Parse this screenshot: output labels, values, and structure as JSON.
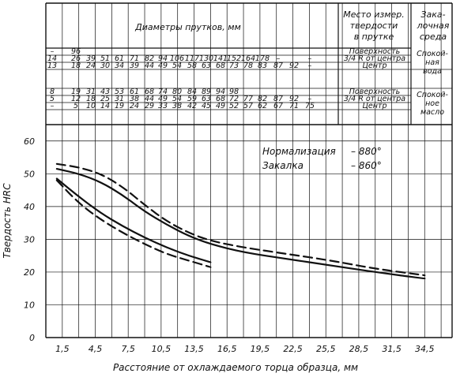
{
  "chart_data": {
    "type": "line",
    "xlabel": "Расстояние от охлаждаемого торца образца, мм",
    "ylabel": "Твердость HRC",
    "xlim": [
      0,
      37
    ],
    "ylim": [
      0,
      65
    ],
    "x_ticks": [
      1.5,
      4.5,
      7.5,
      10.5,
      13.5,
      16.5,
      19.5,
      22.5,
      25.5,
      28.5,
      31.5,
      34.5
    ],
    "x_tick_labels": [
      "1,5",
      "4,5",
      "7,5",
      "10,5",
      "13,5",
      "16,5",
      "19,5",
      "22,5",
      "25,5",
      "28,5",
      "31,5",
      "34,5"
    ],
    "y_ticks": [
      0,
      10,
      20,
      30,
      40,
      50,
      60
    ],
    "y_tick_labels": [
      "0",
      "10",
      "20",
      "30",
      "40",
      "50",
      "60"
    ],
    "grid": true,
    "annotation": {
      "lines": [
        {
          "label": "Нормализация",
          "value": "– 880°"
        },
        {
          "label": "Закалка",
          "value": "– 860°"
        }
      ]
    },
    "series": [
      {
        "style": "solid",
        "x": [
          1.0,
          3.0,
          5.0,
          7.0,
          9.0,
          11.0,
          13.0,
          15.0,
          18.0,
          22.0,
          26.0,
          30.0,
          34.5
        ],
        "y": [
          51.5,
          50.0,
          47.5,
          43.5,
          38.5,
          34.5,
          31.0,
          28.5,
          26.0,
          24.0,
          22.0,
          20.0,
          18.0
        ]
      },
      {
        "style": "dashed",
        "x": [
          1.0,
          3.0,
          5.0,
          7.0,
          9.0,
          11.0,
          13.0,
          15.0,
          18.0,
          22.0,
          26.0,
          30.0,
          34.5
        ],
        "y": [
          53.0,
          52.0,
          50.0,
          46.0,
          40.5,
          35.5,
          32.0,
          29.5,
          27.5,
          25.5,
          23.5,
          21.0,
          19.0
        ]
      },
      {
        "style": "solid",
        "x": [
          1.0,
          3.0,
          5.0,
          7.0,
          9.0,
          11.0,
          13.0,
          15.0
        ],
        "y": [
          48.5,
          43.0,
          38.0,
          34.0,
          30.5,
          27.5,
          25.0,
          23.0
        ]
      },
      {
        "style": "dashed",
        "x": [
          1.0,
          3.0,
          5.0,
          7.0,
          9.0,
          11.0,
          13.0,
          15.0
        ],
        "y": [
          48.0,
          41.0,
          36.0,
          32.0,
          28.5,
          25.5,
          23.5,
          21.5
        ]
      }
    ]
  },
  "table": {
    "header_main": "Диаметры прутков, мм",
    "header_place_lines": [
      "Место измер.",
      "твердости",
      "в прутке"
    ],
    "header_media_lines": [
      "Зака-",
      "лочная",
      "среда"
    ],
    "rows": [
      {
        "values": [
          "–",
          "96",
          "",
          "",
          "",
          "",
          "",
          "",
          "",
          "",
          "",
          "",
          "",
          "",
          "",
          "",
          "",
          ""
        ],
        "place": "Поверхность"
      },
      {
        "values": [
          "14",
          "26",
          "39",
          "51",
          "61",
          "71",
          "82",
          "94",
          "106",
          "117",
          "130",
          "141",
          "152",
          "164",
          "178",
          "–",
          "",
          "–"
        ],
        "place": "3/4 R от центра"
      },
      {
        "values": [
          "13",
          "18",
          "24",
          "30",
          "34",
          "39",
          "44",
          "49",
          "54",
          "58",
          "63",
          "68",
          "73",
          "78",
          "83",
          "87",
          "92",
          "–"
        ],
        "place": "Центр"
      },
      {
        "values": [
          "8",
          "19",
          "31",
          "43",
          "53",
          "61",
          "68",
          "74",
          "80",
          "84",
          "89",
          "94",
          "98",
          "",
          "",
          "",
          "",
          ""
        ],
        "place": "Поверхность"
      },
      {
        "values": [
          "5",
          "12",
          "18",
          "25",
          "31",
          "38",
          "44",
          "49",
          "54",
          "59",
          "63",
          "68",
          "72",
          "77",
          "82",
          "87",
          "92",
          "–"
        ],
        "place": "3/4 R от центра"
      },
      {
        "values": [
          "–",
          "5",
          "10",
          "14",
          "19",
          "24",
          "29",
          "33",
          "38",
          "42",
          "45",
          "49",
          "52",
          "57",
          "62",
          "67",
          "71",
          "75"
        ],
        "place": "Центр"
      }
    ],
    "media": [
      {
        "lines": [
          "Спокой-",
          "ная",
          "вода"
        ]
      },
      {
        "lines": [
          "Спокой-",
          "ное",
          "масло"
        ]
      }
    ]
  }
}
